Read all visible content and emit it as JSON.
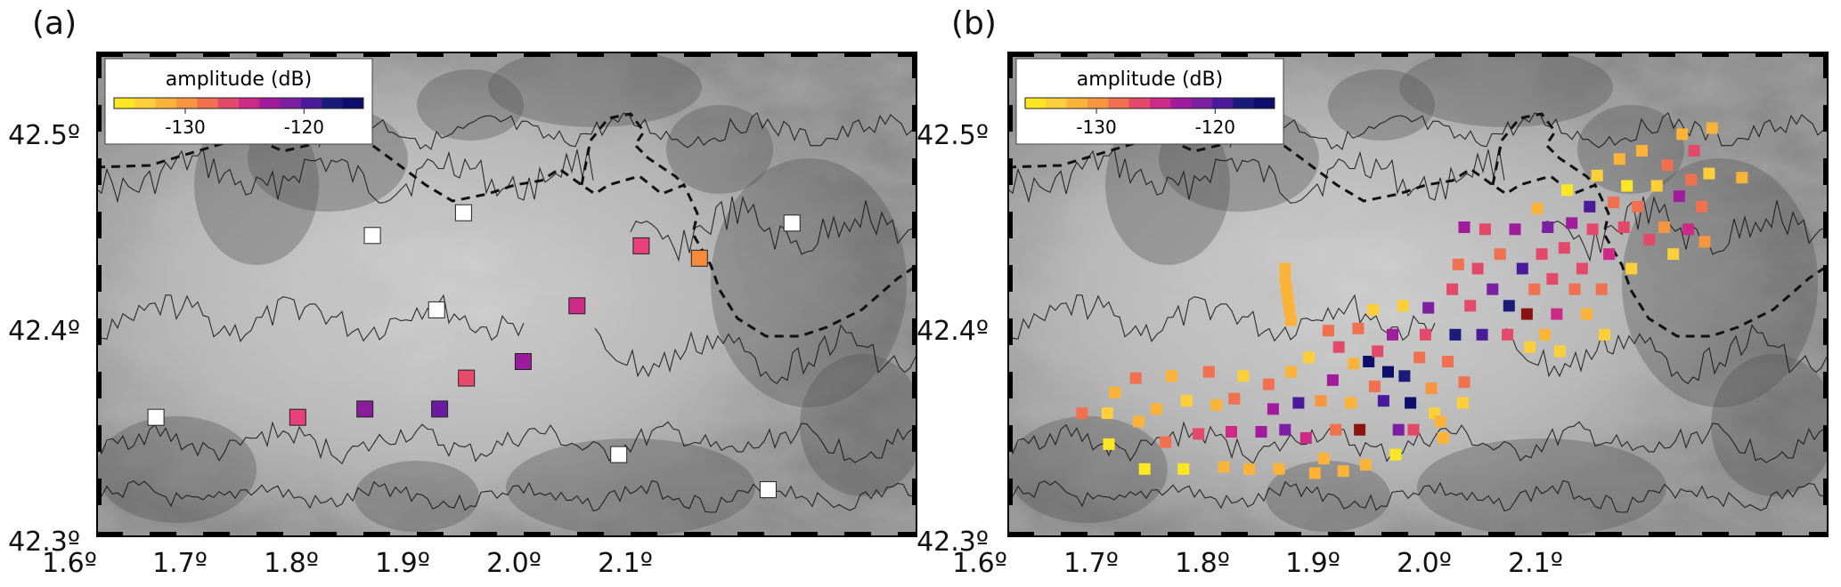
{
  "panels": [
    {
      "label": "(a)",
      "colorbar": {
        "title": "amplitude (dB)",
        "ticks": [
          "-130",
          "-120"
        ]
      },
      "lat_ticks": [
        "42.5º",
        "42.4º",
        "42.3º"
      ],
      "lon_ticks": [
        "1.6º",
        "1.7º",
        "1.8º",
        "1.9º",
        "2.0º",
        "2.1º"
      ]
    },
    {
      "label": "(b)",
      "colorbar": {
        "title": "amplitude (dB)",
        "ticks": [
          "-130",
          "-120"
        ]
      },
      "lat_ticks": [
        "42.5º",
        "42.4º",
        "42.3º"
      ],
      "lon_ticks": [
        "1.6º",
        "1.7º",
        "1.8º",
        "1.9º",
        "2.0º",
        "2.1º"
      ]
    }
  ],
  "colors": {
    "colormap": [
      "#fde725",
      "#fdcf3a",
      "#fbb33a",
      "#f89540",
      "#f07050",
      "#e34a6a",
      "#cc2a86",
      "#a01c9c",
      "#7d1fa3",
      "#4a1a9a",
      "#1a1a78",
      "#0d0e6b"
    ],
    "no_data": "#ffffff",
    "contour": "#111111",
    "border": "#111111"
  },
  "stations_a": [
    {
      "lon": 1.64,
      "lat": 42.358,
      "color": "#ffffff"
    },
    {
      "lon": 1.735,
      "lat": 42.358,
      "color": "#e8407a"
    },
    {
      "lon": 1.78,
      "lat": 42.362,
      "color": "#8a1b9b"
    },
    {
      "lon": 1.83,
      "lat": 42.362,
      "color": "#6a1aa0"
    },
    {
      "lon": 1.848,
      "lat": 42.377,
      "color": "#e84a6a"
    },
    {
      "lon": 1.886,
      "lat": 42.385,
      "color": "#9a1c9c"
    },
    {
      "lon": 1.922,
      "lat": 42.412,
      "color": "#cc2a86"
    },
    {
      "lon": 1.828,
      "lat": 42.41,
      "color": "#ffffff"
    },
    {
      "lon": 1.785,
      "lat": 42.446,
      "color": "#ffffff"
    },
    {
      "lon": 1.846,
      "lat": 42.457,
      "color": "#ffffff"
    },
    {
      "lon": 1.965,
      "lat": 42.441,
      "color": "#e8407a"
    },
    {
      "lon": 2.004,
      "lat": 42.435,
      "color": "#f58a3a"
    },
    {
      "lon": 2.066,
      "lat": 42.452,
      "color": "#ffffff"
    },
    {
      "lon": 1.95,
      "lat": 42.34,
      "color": "#ffffff"
    },
    {
      "lon": 2.05,
      "lat": 42.323,
      "color": "#ffffff"
    }
  ],
  "stations_b": [
    {
      "lon": 1.65,
      "lat": 42.36,
      "color": "#f07050"
    },
    {
      "lon": 1.667,
      "lat": 42.36,
      "color": "#fdcf3a"
    },
    {
      "lon": 1.668,
      "lat": 42.345,
      "color": "#fde725"
    },
    {
      "lon": 1.672,
      "lat": 42.37,
      "color": "#fbb33a"
    },
    {
      "lon": 1.686,
      "lat": 42.377,
      "color": "#f07050"
    },
    {
      "lon": 1.688,
      "lat": 42.356,
      "color": "#fbb33a"
    },
    {
      "lon": 1.692,
      "lat": 42.333,
      "color": "#fde725"
    },
    {
      "lon": 1.7,
      "lat": 42.362,
      "color": "#fbb33a"
    },
    {
      "lon": 1.706,
      "lat": 42.346,
      "color": "#f07050"
    },
    {
      "lon": 1.71,
      "lat": 42.378,
      "color": "#fbb33a"
    },
    {
      "lon": 1.718,
      "lat": 42.333,
      "color": "#fde725"
    },
    {
      "lon": 1.72,
      "lat": 42.366,
      "color": "#fdcf3a"
    },
    {
      "lon": 1.728,
      "lat": 42.35,
      "color": "#e34a6a"
    },
    {
      "lon": 1.735,
      "lat": 42.38,
      "color": "#f07050"
    },
    {
      "lon": 1.74,
      "lat": 42.364,
      "color": "#fbb33a"
    },
    {
      "lon": 1.745,
      "lat": 42.334,
      "color": "#fbb33a"
    },
    {
      "lon": 1.75,
      "lat": 42.351,
      "color": "#cc2a86"
    },
    {
      "lon": 1.752,
      "lat": 42.367,
      "color": "#f07050"
    },
    {
      "lon": 1.758,
      "lat": 42.378,
      "color": "#fdcf3a"
    },
    {
      "lon": 1.762,
      "lat": 42.333,
      "color": "#fbb33a"
    },
    {
      "lon": 1.77,
      "lat": 42.351,
      "color": "#a01c9c"
    },
    {
      "lon": 1.775,
      "lat": 42.374,
      "color": "#f07050"
    },
    {
      "lon": 1.778,
      "lat": 42.362,
      "color": "#a01c9c"
    },
    {
      "lon": 1.782,
      "lat": 42.333,
      "color": "#fbb33a"
    },
    {
      "lon": 1.786,
      "lat": 42.352,
      "color": "#7d1fa3"
    },
    {
      "lon": 1.79,
      "lat": 42.38,
      "color": "#fbb33a"
    },
    {
      "lon": 1.795,
      "lat": 42.365,
      "color": "#4a1a9a"
    },
    {
      "lon": 1.8,
      "lat": 42.348,
      "color": "#cc2a86"
    },
    {
      "lon": 1.802,
      "lat": 42.387,
      "color": "#fdcf3a"
    },
    {
      "lon": 1.806,
      "lat": 42.331,
      "color": "#fbb33a"
    },
    {
      "lon": 1.81,
      "lat": 42.366,
      "color": "#f89540"
    },
    {
      "lon": 1.812,
      "lat": 42.338,
      "color": "#fbb33a"
    },
    {
      "lon": 1.815,
      "lat": 42.4,
      "color": "#f07050"
    },
    {
      "lon": 1.818,
      "lat": 42.376,
      "color": "#a01c9c"
    },
    {
      "lon": 1.82,
      "lat": 42.352,
      "color": "#f07050"
    },
    {
      "lon": 1.822,
      "lat": 42.392,
      "color": "#e34a6a"
    },
    {
      "lon": 1.825,
      "lat": 42.332,
      "color": "#fbb33a"
    },
    {
      "lon": 1.83,
      "lat": 42.365,
      "color": "#fbb33a"
    },
    {
      "lon": 1.832,
      "lat": 42.384,
      "color": "#fbb33a"
    },
    {
      "lon": 1.835,
      "lat": 42.401,
      "color": "#f07050"
    },
    {
      "lon": 1.836,
      "lat": 42.352,
      "color": "#8a1410"
    },
    {
      "lon": 1.84,
      "lat": 42.335,
      "color": "#fbb33a"
    },
    {
      "lon": 1.842,
      "lat": 42.385,
      "color": "#0d0e6b"
    },
    {
      "lon": 1.845,
      "lat": 42.41,
      "color": "#fdcf3a"
    },
    {
      "lon": 1.846,
      "lat": 42.373,
      "color": "#f07050"
    },
    {
      "lon": 1.848,
      "lat": 42.39,
      "color": "#e34a6a"
    },
    {
      "lon": 1.852,
      "lat": 42.366,
      "color": "#4a1a9a"
    },
    {
      "lon": 1.855,
      "lat": 42.38,
      "color": "#0d0e6b"
    },
    {
      "lon": 1.858,
      "lat": 42.398,
      "color": "#a01c9c"
    },
    {
      "lon": 1.86,
      "lat": 42.34,
      "color": "#fde725"
    },
    {
      "lon": 1.862,
      "lat": 42.352,
      "color": "#7d1fa3"
    },
    {
      "lon": 1.865,
      "lat": 42.412,
      "color": "#fdcf3a"
    },
    {
      "lon": 1.866,
      "lat": 42.378,
      "color": "#1a1a78"
    },
    {
      "lon": 1.87,
      "lat": 42.365,
      "color": "#0d0e6b"
    },
    {
      "lon": 1.872,
      "lat": 42.352,
      "color": "#e34a6a"
    },
    {
      "lon": 1.876,
      "lat": 42.387,
      "color": "#f07050"
    },
    {
      "lon": 1.88,
      "lat": 42.398,
      "color": "#e34a6a"
    },
    {
      "lon": 1.882,
      "lat": 42.411,
      "color": "#7d1fa3"
    },
    {
      "lon": 1.884,
      "lat": 42.372,
      "color": "#f89540"
    },
    {
      "lon": 1.886,
      "lat": 42.36,
      "color": "#fdcf3a"
    },
    {
      "lon": 1.89,
      "lat": 42.356,
      "color": "#fbb33a"
    },
    {
      "lon": 1.892,
      "lat": 42.348,
      "color": "#fbb33a"
    },
    {
      "lon": 1.895,
      "lat": 42.385,
      "color": "#f07050"
    },
    {
      "lon": 1.898,
      "lat": 42.42,
      "color": "#e34a6a"
    },
    {
      "lon": 1.9,
      "lat": 42.398,
      "color": "#1a1a78"
    },
    {
      "lon": 1.902,
      "lat": 42.432,
      "color": "#f07050"
    },
    {
      "lon": 1.905,
      "lat": 42.365,
      "color": "#fdcf3a"
    },
    {
      "lon": 1.906,
      "lat": 42.375,
      "color": "#f07050"
    },
    {
      "lon": 1.906,
      "lat": 42.45,
      "color": "#a01c9c"
    },
    {
      "lon": 1.91,
      "lat": 42.412,
      "color": "#e34a6a"
    },
    {
      "lon": 1.915,
      "lat": 42.43,
      "color": "#e34a6a"
    },
    {
      "lon": 1.918,
      "lat": 42.398,
      "color": "#4a1a9a"
    },
    {
      "lon": 1.92,
      "lat": 42.449,
      "color": "#e34a6a"
    },
    {
      "lon": 1.925,
      "lat": 42.42,
      "color": "#7d1fa3"
    },
    {
      "lon": 1.93,
      "lat": 42.437,
      "color": "#f07050"
    },
    {
      "lon": 1.935,
      "lat": 42.398,
      "color": "#e34a6a"
    },
    {
      "lon": 1.936,
      "lat": 42.412,
      "color": "#1a1a78"
    },
    {
      "lon": 1.94,
      "lat": 42.449,
      "color": "#a01c9c"
    },
    {
      "lon": 1.945,
      "lat": 42.43,
      "color": "#4a1a9a"
    },
    {
      "lon": 1.948,
      "lat": 42.408,
      "color": "#8a1410"
    },
    {
      "lon": 1.95,
      "lat": 42.392,
      "color": "#fdcf3a"
    },
    {
      "lon": 1.953,
      "lat": 42.42,
      "color": "#f07050"
    },
    {
      "lon": 1.955,
      "lat": 42.459,
      "color": "#fbb33a"
    },
    {
      "lon": 1.958,
      "lat": 42.437,
      "color": "#e34a6a"
    },
    {
      "lon": 1.96,
      "lat": 42.398,
      "color": "#fbb33a"
    },
    {
      "lon": 1.962,
      "lat": 42.45,
      "color": "#7d1fa3"
    },
    {
      "lon": 1.965,
      "lat": 42.425,
      "color": "#e34a6a"
    },
    {
      "lon": 1.968,
      "lat": 42.408,
      "color": "#cc2a86"
    },
    {
      "lon": 1.97,
      "lat": 42.39,
      "color": "#fdcf3a"
    },
    {
      "lon": 1.973,
      "lat": 42.44,
      "color": "#e34a6a"
    },
    {
      "lon": 1.975,
      "lat": 42.468,
      "color": "#fde725"
    },
    {
      "lon": 1.978,
      "lat": 42.452,
      "color": "#a01c9c"
    },
    {
      "lon": 1.98,
      "lat": 42.42,
      "color": "#f07050"
    },
    {
      "lon": 1.985,
      "lat": 42.43,
      "color": "#e34a6a"
    },
    {
      "lon": 1.988,
      "lat": 42.408,
      "color": "#fbb33a"
    },
    {
      "lon": 1.99,
      "lat": 42.46,
      "color": "#4a1a9a"
    },
    {
      "lon": 1.992,
      "lat": 42.449,
      "color": "#e34a6a"
    },
    {
      "lon": 1.995,
      "lat": 42.475,
      "color": "#fdcf3a"
    },
    {
      "lon": 1.998,
      "lat": 42.42,
      "color": "#f07050"
    },
    {
      "lon": 2.0,
      "lat": 42.398,
      "color": "#fdcf3a"
    },
    {
      "lon": 2.003,
      "lat": 42.437,
      "color": "#cc2a86"
    },
    {
      "lon": 2.006,
      "lat": 42.462,
      "color": "#f07050"
    },
    {
      "lon": 2.01,
      "lat": 42.483,
      "color": "#fbb33a"
    },
    {
      "lon": 2.013,
      "lat": 42.45,
      "color": "#e34a6a"
    },
    {
      "lon": 2.015,
      "lat": 42.47,
      "color": "#fde725"
    },
    {
      "lon": 2.018,
      "lat": 42.43,
      "color": "#fdcf3a"
    },
    {
      "lon": 2.022,
      "lat": 42.46,
      "color": "#f07050"
    },
    {
      "lon": 2.025,
      "lat": 42.487,
      "color": "#fbb33a"
    },
    {
      "lon": 2.03,
      "lat": 42.444,
      "color": "#e34a6a"
    },
    {
      "lon": 2.035,
      "lat": 42.47,
      "color": "#fdcf3a"
    },
    {
      "lon": 2.04,
      "lat": 42.45,
      "color": "#f89540"
    },
    {
      "lon": 2.042,
      "lat": 42.48,
      "color": "#f07050"
    },
    {
      "lon": 2.046,
      "lat": 42.437,
      "color": "#fdcf3a"
    },
    {
      "lon": 2.05,
      "lat": 42.465,
      "color": "#a01c9c"
    },
    {
      "lon": 2.052,
      "lat": 42.495,
      "color": "#fbb33a"
    },
    {
      "lon": 2.056,
      "lat": 42.449,
      "color": "#cc2a86"
    },
    {
      "lon": 2.058,
      "lat": 42.473,
      "color": "#f07050"
    },
    {
      "lon": 2.06,
      "lat": 42.487,
      "color": "#e34a6a"
    },
    {
      "lon": 2.065,
      "lat": 42.46,
      "color": "#f07050"
    },
    {
      "lon": 2.067,
      "lat": 42.443,
      "color": "#f89540"
    },
    {
      "lon": 2.07,
      "lat": 42.476,
      "color": "#fdcf3a"
    },
    {
      "lon": 2.072,
      "lat": 42.498,
      "color": "#fbb33a"
    },
    {
      "lon": 2.092,
      "lat": 42.474,
      "color": "#fbb33a"
    },
    {
      "lon": 1.786,
      "lat": 42.43,
      "color": "#fbb33a"
    },
    {
      "lon": 1.786,
      "lat": 42.425,
      "color": "#fbb33a"
    },
    {
      "lon": 1.787,
      "lat": 42.42,
      "color": "#fbb33a"
    },
    {
      "lon": 1.788,
      "lat": 42.415,
      "color": "#fbb33a"
    },
    {
      "lon": 1.789,
      "lat": 42.41,
      "color": "#fbb33a"
    },
    {
      "lon": 1.79,
      "lat": 42.405,
      "color": "#fbb33a"
    }
  ]
}
